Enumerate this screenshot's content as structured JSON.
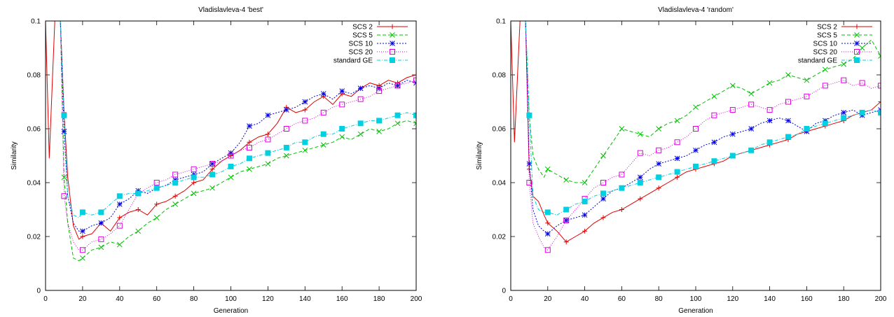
{
  "chart_data": [
    {
      "type": "line",
      "title": "Vladislavleva-4 'best'",
      "xlabel": "Generation",
      "ylabel": "Similarity",
      "xlim": [
        0,
        200
      ],
      "ylim": [
        0,
        0.1
      ],
      "xticks": [
        0,
        20,
        40,
        60,
        80,
        100,
        120,
        140,
        160,
        180,
        200
      ],
      "yticks": [
        0,
        0.02,
        0.04,
        0.06,
        0.08,
        0.1
      ],
      "xtick_labels": [
        "0",
        "20",
        "40",
        "60",
        "80",
        "100",
        "120",
        "140",
        "160",
        "180",
        "200"
      ],
      "ytick_labels": [
        "0",
        "0.02",
        "0.04",
        "0.06",
        "0.08",
        "0.1"
      ],
      "legend_position": "top-right",
      "grid": false,
      "series": [
        {
          "name": "SCS 2",
          "color": "#e00000",
          "marker": "plus",
          "dash": "",
          "x": [
            0,
            2,
            5,
            8,
            10,
            12,
            15,
            18,
            20,
            25,
            30,
            35,
            40,
            45,
            50,
            55,
            60,
            65,
            70,
            75,
            80,
            85,
            90,
            95,
            100,
            105,
            110,
            115,
            120,
            125,
            130,
            135,
            140,
            145,
            150,
            155,
            160,
            165,
            170,
            175,
            180,
            185,
            190,
            195,
            200
          ],
          "y": [
            0.1,
            0.049,
            0.1,
            0.1,
            0.066,
            0.042,
            0.024,
            0.019,
            0.02,
            0.021,
            0.025,
            0.022,
            0.027,
            0.029,
            0.03,
            0.028,
            0.032,
            0.033,
            0.035,
            0.037,
            0.04,
            0.041,
            0.045,
            0.048,
            0.05,
            0.052,
            0.055,
            0.057,
            0.058,
            0.062,
            0.068,
            0.066,
            0.067,
            0.07,
            0.072,
            0.069,
            0.073,
            0.072,
            0.075,
            0.077,
            0.076,
            0.078,
            0.077,
            0.079,
            0.08
          ]
        },
        {
          "name": "SCS 5",
          "color": "#00c000",
          "marker": "cross",
          "dash": "5,3",
          "x": [
            0,
            2,
            5,
            8,
            10,
            12,
            15,
            18,
            20,
            25,
            30,
            35,
            40,
            45,
            50,
            55,
            60,
            65,
            70,
            75,
            80,
            85,
            90,
            95,
            100,
            105,
            110,
            115,
            120,
            125,
            130,
            135,
            140,
            145,
            150,
            155,
            160,
            165,
            170,
            175,
            180,
            185,
            190,
            195,
            200
          ],
          "y": [
            0.1,
            0.1,
            0.1,
            0.1,
            0.042,
            0.025,
            0.012,
            0.011,
            0.012,
            0.015,
            0.016,
            0.018,
            0.017,
            0.02,
            0.022,
            0.025,
            0.027,
            0.03,
            0.032,
            0.034,
            0.036,
            0.037,
            0.038,
            0.04,
            0.042,
            0.044,
            0.045,
            0.046,
            0.047,
            0.049,
            0.05,
            0.051,
            0.052,
            0.053,
            0.054,
            0.055,
            0.057,
            0.056,
            0.058,
            0.06,
            0.059,
            0.06,
            0.062,
            0.063,
            0.062
          ]
        },
        {
          "name": "SCS 10",
          "color": "#0000e0",
          "marker": "star",
          "dash": "2,2",
          "x": [
            0,
            2,
            5,
            8,
            10,
            12,
            15,
            18,
            20,
            25,
            30,
            35,
            40,
            45,
            50,
            55,
            60,
            65,
            70,
            75,
            80,
            85,
            90,
            95,
            100,
            105,
            110,
            115,
            120,
            125,
            130,
            135,
            140,
            145,
            150,
            155,
            160,
            165,
            170,
            175,
            180,
            185,
            190,
            195,
            200
          ],
          "y": [
            0.1,
            0.1,
            0.1,
            0.1,
            0.059,
            0.035,
            0.025,
            0.022,
            0.022,
            0.024,
            0.025,
            0.027,
            0.032,
            0.034,
            0.037,
            0.036,
            0.038,
            0.039,
            0.041,
            0.042,
            0.043,
            0.044,
            0.047,
            0.049,
            0.051,
            0.055,
            0.061,
            0.062,
            0.065,
            0.066,
            0.067,
            0.068,
            0.07,
            0.072,
            0.073,
            0.071,
            0.074,
            0.073,
            0.075,
            0.076,
            0.075,
            0.077,
            0.076,
            0.078,
            0.077
          ]
        },
        {
          "name": "SCS 20",
          "color": "#e000e0",
          "marker": "square",
          "dash": "1,2",
          "x": [
            0,
            2,
            5,
            8,
            10,
            12,
            15,
            18,
            20,
            25,
            30,
            35,
            40,
            45,
            50,
            55,
            60,
            65,
            70,
            75,
            80,
            85,
            90,
            95,
            100,
            105,
            110,
            115,
            120,
            125,
            130,
            135,
            140,
            145,
            150,
            155,
            160,
            165,
            170,
            175,
            180,
            185,
            190,
            195,
            200
          ],
          "y": [
            0.1,
            0.1,
            0.1,
            0.1,
            0.035,
            0.025,
            0.018,
            0.015,
            0.015,
            0.018,
            0.019,
            0.021,
            0.024,
            0.03,
            0.036,
            0.038,
            0.04,
            0.041,
            0.043,
            0.044,
            0.045,
            0.046,
            0.047,
            0.048,
            0.05,
            0.052,
            0.053,
            0.055,
            0.056,
            0.058,
            0.06,
            0.062,
            0.063,
            0.064,
            0.066,
            0.068,
            0.069,
            0.07,
            0.071,
            0.072,
            0.074,
            0.075,
            0.076,
            0.077,
            0.078
          ]
        },
        {
          "name": "standard GE",
          "color": "#00d0e0",
          "marker": "filled-square",
          "dash": "5,2,1,2",
          "x": [
            0,
            2,
            5,
            8,
            10,
            12,
            15,
            18,
            20,
            25,
            30,
            35,
            40,
            45,
            50,
            55,
            60,
            65,
            70,
            75,
            80,
            85,
            90,
            95,
            100,
            105,
            110,
            115,
            120,
            125,
            130,
            135,
            140,
            145,
            150,
            155,
            160,
            165,
            170,
            175,
            180,
            185,
            190,
            195,
            200
          ],
          "y": [
            0.1,
            0.1,
            0.1,
            0.1,
            0.065,
            0.035,
            0.028,
            0.027,
            0.029,
            0.028,
            0.029,
            0.032,
            0.035,
            0.036,
            0.036,
            0.037,
            0.038,
            0.039,
            0.04,
            0.041,
            0.042,
            0.042,
            0.043,
            0.044,
            0.046,
            0.047,
            0.049,
            0.05,
            0.051,
            0.052,
            0.053,
            0.055,
            0.055,
            0.057,
            0.058,
            0.058,
            0.06,
            0.061,
            0.062,
            0.063,
            0.063,
            0.064,
            0.065,
            0.066,
            0.065
          ]
        }
      ]
    },
    {
      "type": "line",
      "title": "Vladislavleva-4 'random'",
      "xlabel": "Generation",
      "ylabel": "Similarity",
      "xlim": [
        0,
        200
      ],
      "ylim": [
        0,
        0.1
      ],
      "xticks": [
        0,
        20,
        40,
        60,
        80,
        100,
        120,
        140,
        160,
        180,
        200
      ],
      "yticks": [
        0,
        0.02,
        0.04,
        0.06,
        0.08,
        0.1
      ],
      "xtick_labels": [
        "0",
        "20",
        "40",
        "60",
        "80",
        "100",
        "120",
        "140",
        "160",
        "180",
        "200"
      ],
      "ytick_labels": [
        "0",
        "0.02",
        "0.04",
        "0.06",
        "0.08",
        "0.1"
      ],
      "legend_position": "top-right",
      "grid": false,
      "series": [
        {
          "name": "SCS 2",
          "color": "#e00000",
          "marker": "plus",
          "dash": "",
          "x": [
            0,
            2,
            5,
            8,
            10,
            12,
            15,
            18,
            20,
            25,
            30,
            35,
            40,
            45,
            50,
            55,
            60,
            65,
            70,
            75,
            80,
            85,
            90,
            95,
            100,
            105,
            110,
            115,
            120,
            125,
            130,
            135,
            140,
            145,
            150,
            155,
            160,
            165,
            170,
            175,
            180,
            185,
            190,
            195,
            200
          ],
          "y": [
            0.1,
            0.055,
            0.1,
            0.1,
            0.045,
            0.035,
            0.033,
            0.028,
            0.025,
            0.022,
            0.018,
            0.02,
            0.022,
            0.025,
            0.027,
            0.029,
            0.03,
            0.032,
            0.034,
            0.036,
            0.038,
            0.04,
            0.042,
            0.044,
            0.045,
            0.046,
            0.047,
            0.048,
            0.05,
            0.051,
            0.052,
            0.053,
            0.054,
            0.055,
            0.056,
            0.058,
            0.059,
            0.06,
            0.061,
            0.062,
            0.063,
            0.065,
            0.066,
            0.067,
            0.07
          ]
        },
        {
          "name": "SCS 5",
          "color": "#00c000",
          "marker": "cross",
          "dash": "5,3",
          "x": [
            0,
            2,
            5,
            8,
            10,
            12,
            15,
            18,
            20,
            25,
            30,
            35,
            40,
            45,
            50,
            55,
            60,
            65,
            70,
            75,
            80,
            85,
            90,
            95,
            100,
            105,
            110,
            115,
            120,
            125,
            130,
            135,
            140,
            145,
            150,
            155,
            160,
            165,
            170,
            175,
            180,
            185,
            190,
            195,
            200
          ],
          "y": [
            0.1,
            0.1,
            0.1,
            0.1,
            0.065,
            0.05,
            0.045,
            0.042,
            0.045,
            0.043,
            0.041,
            0.04,
            0.04,
            0.045,
            0.05,
            0.055,
            0.06,
            0.059,
            0.058,
            0.057,
            0.06,
            0.062,
            0.063,
            0.065,
            0.068,
            0.07,
            0.072,
            0.074,
            0.076,
            0.075,
            0.073,
            0.075,
            0.077,
            0.078,
            0.08,
            0.079,
            0.078,
            0.08,
            0.082,
            0.083,
            0.084,
            0.086,
            0.09,
            0.093,
            0.087
          ]
        },
        {
          "name": "SCS 10",
          "color": "#0000e0",
          "marker": "star",
          "dash": "2,2",
          "x": [
            0,
            2,
            5,
            8,
            10,
            12,
            15,
            18,
            20,
            25,
            30,
            35,
            40,
            45,
            50,
            55,
            60,
            65,
            70,
            75,
            80,
            85,
            90,
            95,
            100,
            105,
            110,
            115,
            120,
            125,
            130,
            135,
            140,
            145,
            150,
            155,
            160,
            165,
            170,
            175,
            180,
            185,
            190,
            195,
            200
          ],
          "y": [
            0.1,
            0.1,
            0.1,
            0.1,
            0.047,
            0.03,
            0.024,
            0.022,
            0.021,
            0.024,
            0.026,
            0.027,
            0.028,
            0.031,
            0.034,
            0.037,
            0.038,
            0.04,
            0.042,
            0.045,
            0.047,
            0.048,
            0.049,
            0.05,
            0.052,
            0.054,
            0.055,
            0.057,
            0.058,
            0.059,
            0.06,
            0.062,
            0.063,
            0.064,
            0.063,
            0.061,
            0.059,
            0.062,
            0.063,
            0.065,
            0.066,
            0.067,
            0.065,
            0.066,
            0.067
          ]
        },
        {
          "name": "SCS 20",
          "color": "#e000e0",
          "marker": "square",
          "dash": "1,2",
          "x": [
            0,
            2,
            5,
            8,
            10,
            12,
            15,
            18,
            20,
            25,
            30,
            35,
            40,
            45,
            50,
            55,
            60,
            65,
            70,
            75,
            80,
            85,
            90,
            95,
            100,
            105,
            110,
            115,
            120,
            125,
            130,
            135,
            140,
            145,
            150,
            155,
            160,
            165,
            170,
            175,
            180,
            185,
            190,
            195,
            200
          ],
          "y": [
            0.1,
            0.1,
            0.1,
            0.1,
            0.04,
            0.025,
            0.02,
            0.016,
            0.015,
            0.02,
            0.026,
            0.03,
            0.034,
            0.038,
            0.04,
            0.042,
            0.043,
            0.047,
            0.051,
            0.05,
            0.052,
            0.053,
            0.055,
            0.057,
            0.06,
            0.063,
            0.065,
            0.066,
            0.067,
            0.068,
            0.069,
            0.068,
            0.067,
            0.069,
            0.07,
            0.071,
            0.072,
            0.074,
            0.076,
            0.077,
            0.078,
            0.076,
            0.077,
            0.075,
            0.076
          ]
        },
        {
          "name": "standard GE",
          "color": "#00d0e0",
          "marker": "filled-square",
          "dash": "5,2,1,2",
          "x": [
            0,
            2,
            5,
            8,
            10,
            12,
            15,
            18,
            20,
            25,
            30,
            35,
            40,
            45,
            50,
            55,
            60,
            65,
            70,
            75,
            80,
            85,
            90,
            95,
            100,
            105,
            110,
            115,
            120,
            125,
            130,
            135,
            140,
            145,
            150,
            155,
            160,
            165,
            170,
            175,
            180,
            185,
            190,
            195,
            200
          ],
          "y": [
            0.1,
            0.1,
            0.1,
            0.1,
            0.065,
            0.035,
            0.03,
            0.029,
            0.029,
            0.028,
            0.03,
            0.032,
            0.033,
            0.035,
            0.036,
            0.037,
            0.038,
            0.039,
            0.04,
            0.041,
            0.042,
            0.043,
            0.044,
            0.045,
            0.046,
            0.047,
            0.048,
            0.049,
            0.05,
            0.051,
            0.052,
            0.054,
            0.055,
            0.056,
            0.057,
            0.058,
            0.06,
            0.061,
            0.062,
            0.063,
            0.064,
            0.065,
            0.066,
            0.067,
            0.066
          ]
        }
      ]
    }
  ]
}
